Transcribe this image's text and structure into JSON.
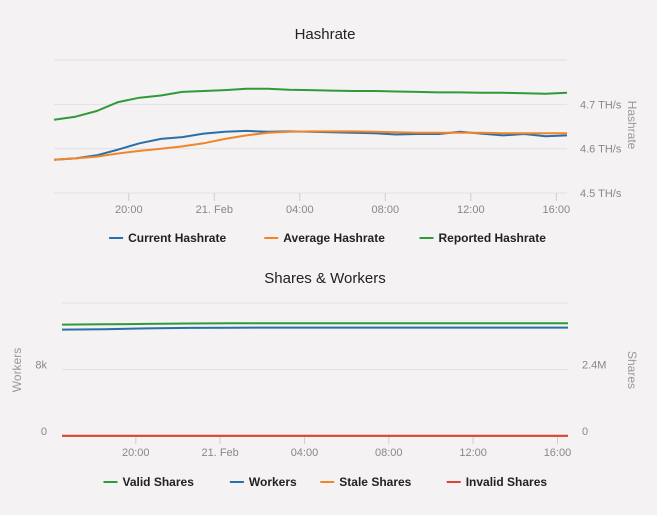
{
  "chart_data": [
    {
      "type": "line",
      "title": "Hashrate",
      "xlabel": "",
      "ylabel": "Hashrate",
      "x_unit": "hours since 20 Feb 00:00",
      "x": [
        16.5,
        17.5,
        18.5,
        19.5,
        20.5,
        21.5,
        22.5,
        23.5,
        24.5,
        25.5,
        26.5,
        27.5,
        28.5,
        29.5,
        30.5,
        31.5,
        32.5,
        33.5,
        34.5,
        35.5,
        36.5,
        37.5,
        38.5,
        39.5,
        40.5
      ],
      "xlim": [
        16.5,
        40.5
      ],
      "x_ticks": [
        {
          "v": 20,
          "label": "20:00"
        },
        {
          "v": 24,
          "label": "21. Feb"
        },
        {
          "v": 28,
          "label": "04:00"
        },
        {
          "v": 32,
          "label": "08:00"
        },
        {
          "v": 36,
          "label": "12:00"
        },
        {
          "v": 40,
          "label": "16:00"
        }
      ],
      "ylim": [
        4.5,
        4.8
      ],
      "y_ticks": [
        {
          "v": 4.5,
          "label": "4.5 TH/s"
        },
        {
          "v": 4.6,
          "label": "4.6 TH/s"
        },
        {
          "v": 4.7,
          "label": "4.7 TH/s"
        },
        {
          "v": 4.8,
          "label": ""
        }
      ],
      "y_axis_side": "right",
      "grid": true,
      "legend_position": "bottom",
      "series": [
        {
          "name": "Current Hashrate",
          "color": "#2a6fa8",
          "values": [
            4.575,
            4.578,
            4.585,
            4.598,
            4.612,
            4.622,
            4.626,
            4.634,
            4.638,
            4.64,
            4.638,
            4.639,
            4.638,
            4.637,
            4.636,
            4.635,
            4.632,
            4.633,
            4.633,
            4.638,
            4.634,
            4.63,
            4.633,
            4.628,
            4.63
          ]
        },
        {
          "name": "Average Hashrate",
          "color": "#f0862a",
          "values": [
            4.575,
            4.578,
            4.582,
            4.589,
            4.595,
            4.6,
            4.605,
            4.612,
            4.622,
            4.63,
            4.636,
            4.638,
            4.639,
            4.639,
            4.639,
            4.638,
            4.637,
            4.636,
            4.636,
            4.636,
            4.636,
            4.635,
            4.635,
            4.635,
            4.635
          ]
        },
        {
          "name": "Reported Hashrate",
          "color": "#2f9a3a",
          "values": [
            4.665,
            4.672,
            4.685,
            4.705,
            4.715,
            4.72,
            4.728,
            4.73,
            4.732,
            4.735,
            4.735,
            4.733,
            4.732,
            4.731,
            4.73,
            4.73,
            4.729,
            4.728,
            4.727,
            4.727,
            4.726,
            4.726,
            4.725,
            4.724,
            4.726
          ]
        }
      ]
    },
    {
      "type": "line",
      "title": "Shares & Workers",
      "xlabel": "",
      "ylabel_left": "Workers",
      "ylabel_right": "Shares",
      "x": [
        16.5,
        18.5,
        20.5,
        22.5,
        24.5,
        26.5,
        28.5,
        30.5,
        32.5,
        34.5,
        36.5,
        38.5,
        40.5
      ],
      "xlim": [
        16.5,
        40.5
      ],
      "x_ticks": [
        {
          "v": 20,
          "label": "20:00"
        },
        {
          "v": 24,
          "label": "21. Feb"
        },
        {
          "v": 28,
          "label": "04:00"
        },
        {
          "v": 32,
          "label": "08:00"
        },
        {
          "v": 36,
          "label": "12:00"
        },
        {
          "v": 40,
          "label": "16:00"
        }
      ],
      "ylim_left": [
        0,
        16000
      ],
      "ylim_right": [
        0,
        4800000
      ],
      "y_ticks_left": [
        {
          "v": 0,
          "label": "0"
        },
        {
          "v": 8000,
          "label": "8k"
        }
      ],
      "y_ticks_right": [
        {
          "v": 0,
          "label": "0"
        },
        {
          "v": 2400000,
          "label": "2.4M"
        }
      ],
      "grid": true,
      "legend_position": "bottom",
      "series": [
        {
          "name": "Valid Shares",
          "color": "#2f9a3a",
          "axis": "right",
          "values": [
            4020000,
            4030000,
            4045000,
            4060000,
            4070000,
            4072000,
            4072000,
            4070000,
            4070000,
            4072000,
            4072000,
            4070000,
            4072000
          ]
        },
        {
          "name": "Workers",
          "color": "#2a6fa8",
          "axis": "left",
          "values": [
            12800,
            12850,
            12950,
            13000,
            13030,
            13040,
            13040,
            13040,
            13040,
            13040,
            13040,
            13040,
            13040
          ]
        },
        {
          "name": "Stale Shares",
          "color": "#f0862a",
          "axis": "right",
          "values": [
            8000,
            8000,
            8000,
            8000,
            8000,
            8000,
            8000,
            8000,
            8000,
            8000,
            8000,
            8000,
            8000
          ]
        },
        {
          "name": "Invalid Shares",
          "color": "#d9453a",
          "axis": "right",
          "values": [
            2000,
            2000,
            2000,
            2000,
            2000,
            2000,
            2000,
            2000,
            2000,
            2000,
            2000,
            2000,
            2000
          ]
        }
      ]
    }
  ]
}
